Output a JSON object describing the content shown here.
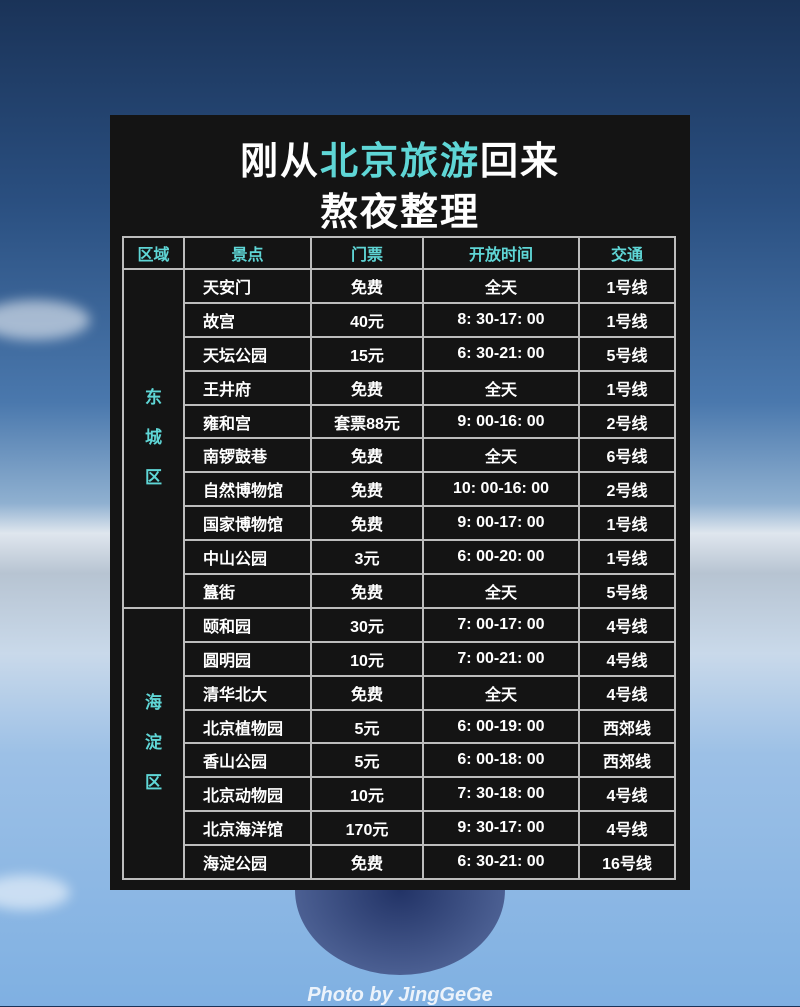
{
  "title": {
    "line1_a": "刚从",
    "line1_hl": "北京旅游",
    "line1_b": "回来",
    "line2": "熬夜整理"
  },
  "headers": [
    "区域",
    "景点",
    "门票",
    "开放时间",
    "交通"
  ],
  "districts": [
    {
      "name": "东城区",
      "rows": [
        [
          "天安门",
          "免费",
          "全天",
          "1号线"
        ],
        [
          "故宫",
          "40元",
          "8: 30-17: 00",
          "1号线"
        ],
        [
          "天坛公园",
          "15元",
          "6: 30-21: 00",
          "5号线"
        ],
        [
          "王井府",
          "免费",
          "全天",
          "1号线"
        ],
        [
          "雍和宫",
          "套票88元",
          "9: 00-16: 00",
          "2号线"
        ],
        [
          "南锣鼓巷",
          "免费",
          "全天",
          "6号线"
        ],
        [
          "自然博物馆",
          "免费",
          "10: 00-16: 00",
          "2号线"
        ],
        [
          "国家博物馆",
          "免费",
          "9: 00-17: 00",
          "1号线"
        ],
        [
          "中山公园",
          "3元",
          "6: 00-20: 00",
          "1号线"
        ],
        [
          "簋街",
          "免费",
          "全天",
          "5号线"
        ]
      ]
    },
    {
      "name": "海淀区",
      "rows": [
        [
          "颐和园",
          "30元",
          "7: 00-17: 00",
          "4号线"
        ],
        [
          "圆明园",
          "10元",
          "7: 00-21: 00",
          "4号线"
        ],
        [
          "清华北大",
          "免费",
          "全天",
          "4号线"
        ],
        [
          "北京植物园",
          "5元",
          "6: 00-19: 00",
          "西郊线"
        ],
        [
          "香山公园",
          "5元",
          "6: 00-18: 00",
          "西郊线"
        ],
        [
          "北京动物园",
          "10元",
          "7: 30-18: 00",
          "4号线"
        ],
        [
          "北京海洋馆",
          "170元",
          "9: 30-17: 00",
          "4号线"
        ],
        [
          "海淀公园",
          "免费",
          "6: 30-21: 00",
          "16号线"
        ]
      ]
    }
  ],
  "watermark": "Photo by JingGeGe",
  "colors": {
    "accent": "#5fd6d6",
    "card": "#141414"
  }
}
